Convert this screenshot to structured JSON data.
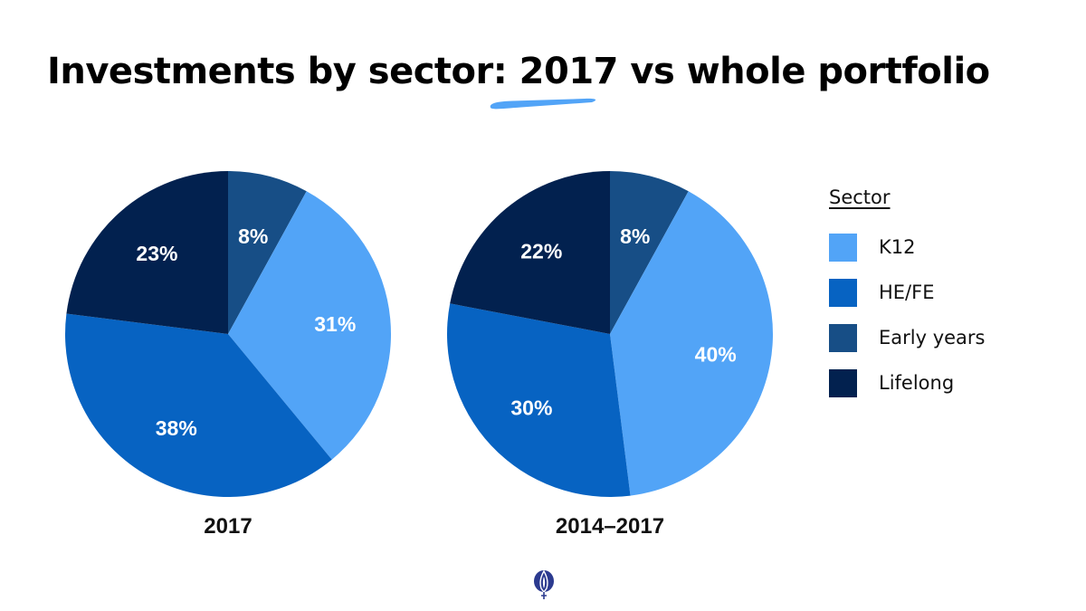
{
  "title": "Investments by sector: 2017 vs whole portfolio",
  "legend": {
    "title": "Sector",
    "items": [
      {
        "label": "K12",
        "color": "#52a4f7"
      },
      {
        "label": "HE/FE",
        "color": "#0763c2"
      },
      {
        "label": "Early years",
        "color": "#174e86"
      },
      {
        "label": "Lifelong",
        "color": "#02214f"
      }
    ]
  },
  "chart_data": [
    {
      "type": "pie",
      "title": "2017",
      "start": "top",
      "direction": "clockwise",
      "slices": [
        {
          "label": "Early years",
          "value": 8,
          "display": "8%",
          "color": "#174e86"
        },
        {
          "label": "K12",
          "value": 31,
          "display": "31%",
          "color": "#52a4f7"
        },
        {
          "label": "HE/FE",
          "value": 38,
          "display": "38%",
          "color": "#0763c2"
        },
        {
          "label": "Lifelong",
          "value": 23,
          "display": "23%",
          "color": "#02214f"
        }
      ]
    },
    {
      "type": "pie",
      "title": "2014–2017",
      "start": "top",
      "direction": "clockwise",
      "slices": [
        {
          "label": "Early years",
          "value": 8,
          "display": "8%",
          "color": "#174e86"
        },
        {
          "label": "K12",
          "value": 40,
          "display": "40%",
          "color": "#52a4f7"
        },
        {
          "label": "HE/FE",
          "value": 30,
          "display": "30%",
          "color": "#0763c2"
        },
        {
          "label": "Lifelong",
          "value": 22,
          "display": "22%",
          "color": "#02214f"
        }
      ]
    }
  ],
  "accent_color": "#52a4f7",
  "logo_icon": "flame-emblem-icon",
  "logo_color": "#2b3a8f"
}
